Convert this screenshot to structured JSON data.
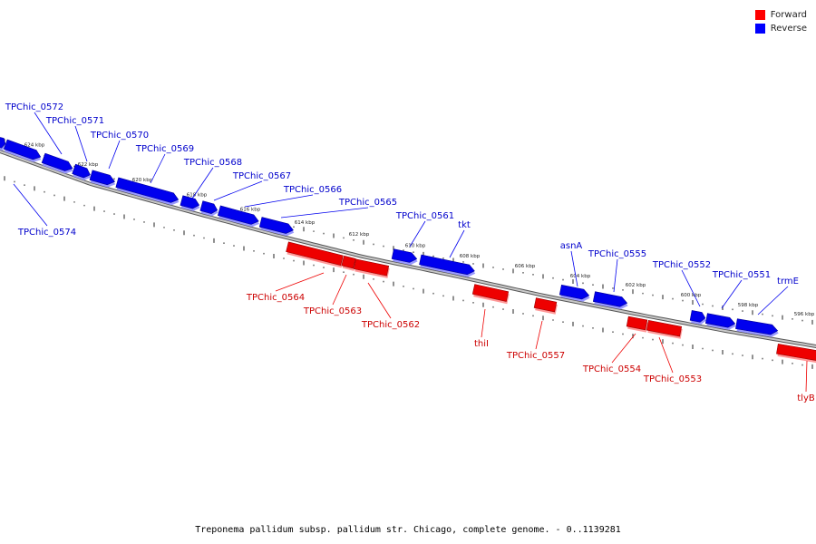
{
  "legend": {
    "forward_label": "Forward",
    "reverse_label": "Reverse",
    "forward_color": "#ff0000",
    "reverse_color": "#0000ff"
  },
  "caption": "Treponema pallidum subsp. pallidum str. Chicago, complete genome. - 0..1139281",
  "colors": {
    "forward": "#ee0000",
    "reverse": "#0000ee",
    "backbone": "#888888",
    "label_forward": "#cc0000",
    "label_reverse": "#0000cc"
  },
  "scale_labels": [
    "624 kbp",
    "622 kbp",
    "620 kbp",
    "618 kbp",
    "616 kbp",
    "614 kbp",
    "612 kbp",
    "610 kbp",
    "608 kbp",
    "606 kbp",
    "604 kbp",
    "602 kbp",
    "600 kbp",
    "598 kbp",
    "596 kbp"
  ],
  "genes": [
    {
      "name": "TPChic_0572",
      "strand": "reverse"
    },
    {
      "name": "TPChic_0571",
      "strand": "reverse"
    },
    {
      "name": "TPChic_0570",
      "strand": "reverse"
    },
    {
      "name": "TPChic_0569",
      "strand": "reverse"
    },
    {
      "name": "TPChic_0568",
      "strand": "reverse"
    },
    {
      "name": "TPChic_0567",
      "strand": "reverse"
    },
    {
      "name": "TPChic_0566",
      "strand": "reverse"
    },
    {
      "name": "TPChic_0565",
      "strand": "reverse"
    },
    {
      "name": "TPChic_0561",
      "strand": "reverse"
    },
    {
      "name": "tkt",
      "strand": "reverse"
    },
    {
      "name": "asnA",
      "strand": "reverse"
    },
    {
      "name": "TPChic_0555",
      "strand": "reverse"
    },
    {
      "name": "TPChic_0552",
      "strand": "reverse"
    },
    {
      "name": "TPChic_0551",
      "strand": "reverse"
    },
    {
      "name": "trmE",
      "strand": "reverse"
    },
    {
      "name": "TPChic_0574",
      "strand": "reverse"
    },
    {
      "name": "TPChic_0564",
      "strand": "forward"
    },
    {
      "name": "TPChic_0563",
      "strand": "forward"
    },
    {
      "name": "TPChic_0562",
      "strand": "forward"
    },
    {
      "name": "thiI",
      "strand": "forward"
    },
    {
      "name": "TPChic_0557",
      "strand": "forward"
    },
    {
      "name": "TPChic_0554",
      "strand": "forward"
    },
    {
      "name": "TPChic_0553",
      "strand": "forward"
    },
    {
      "name": "tlyB",
      "strand": "forward"
    }
  ]
}
